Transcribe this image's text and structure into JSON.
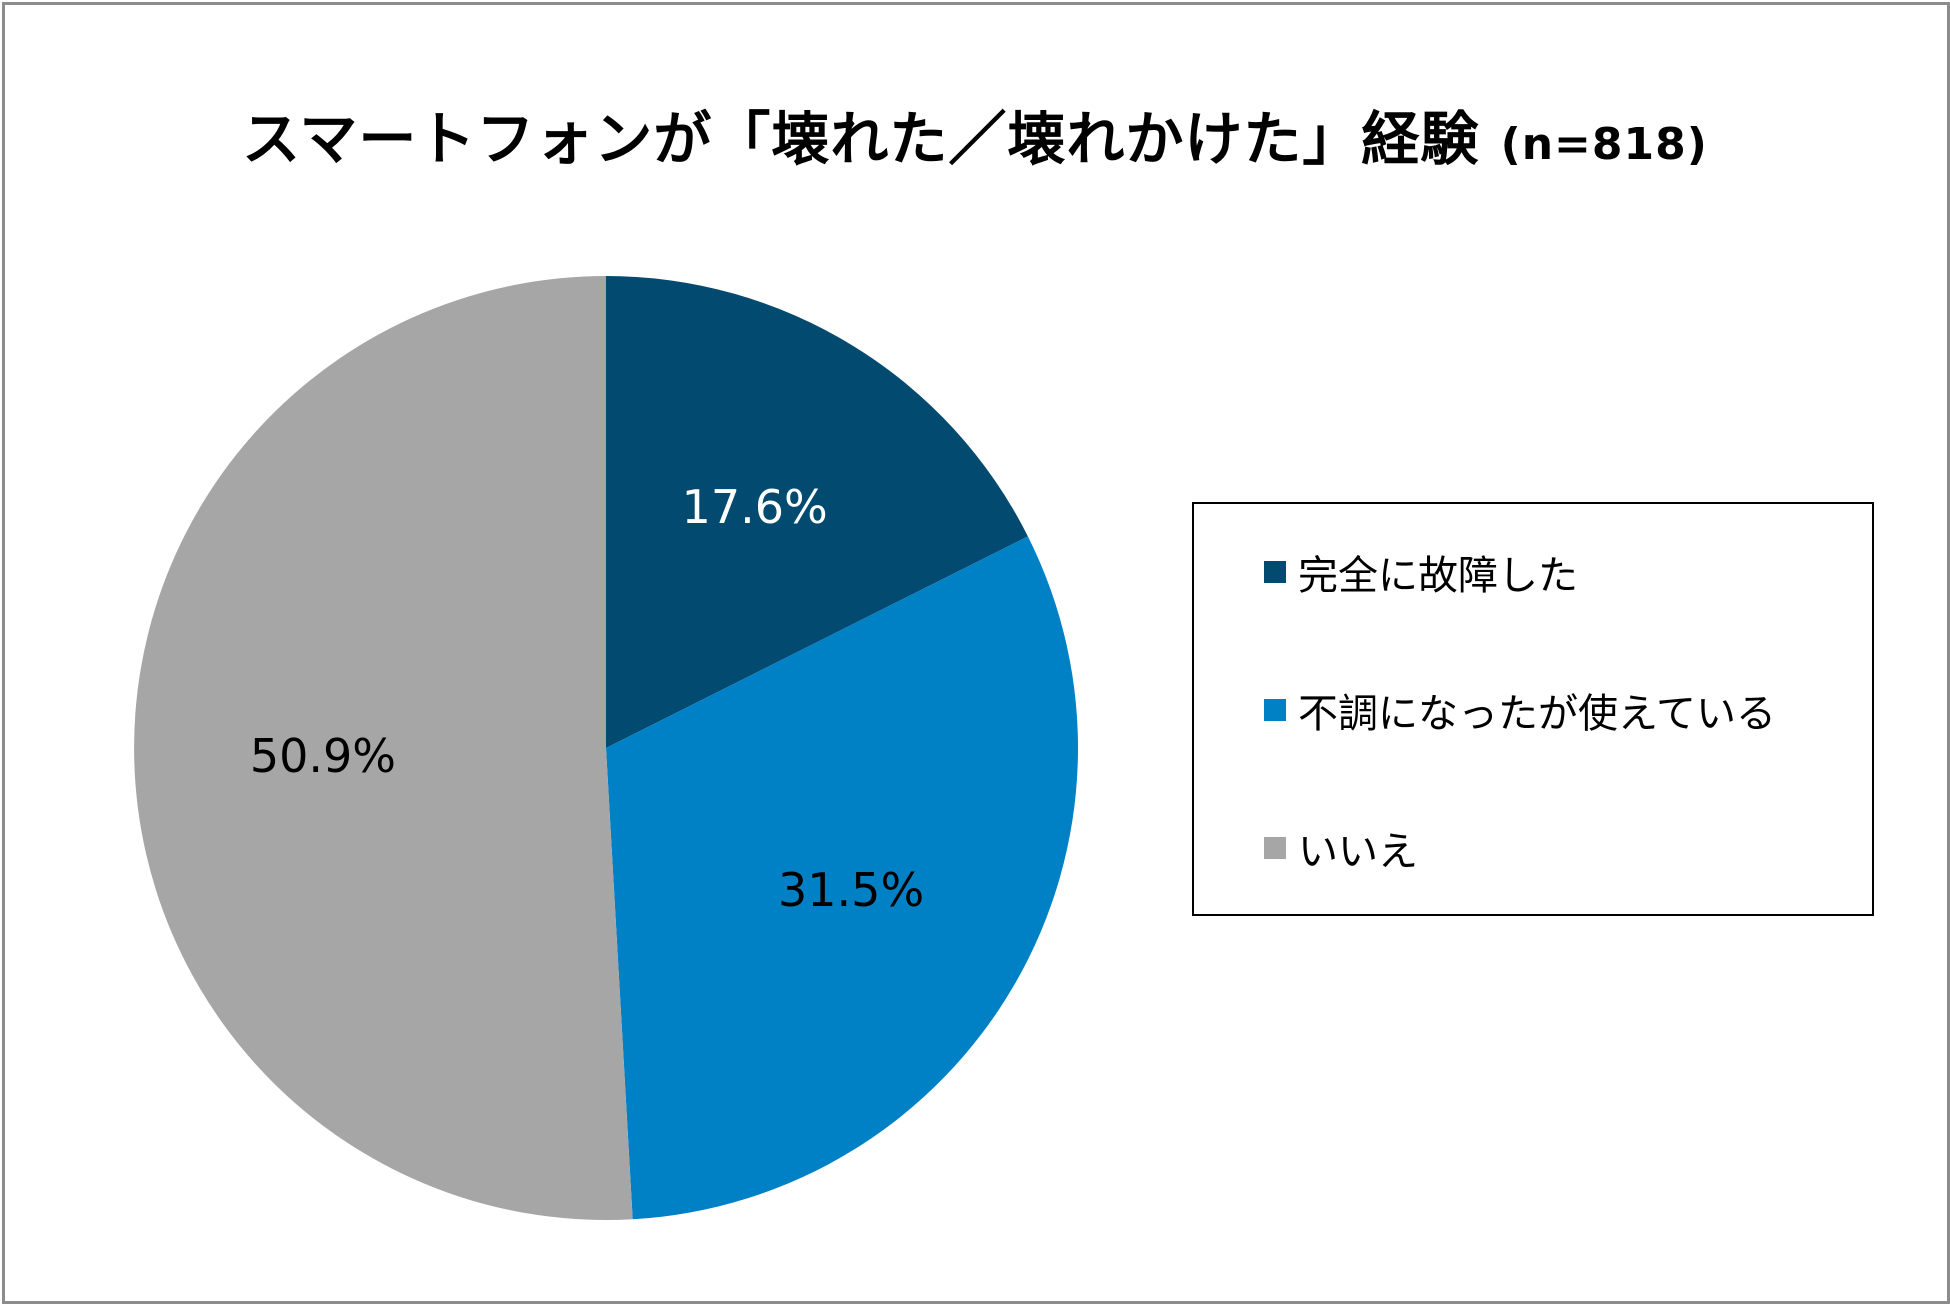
{
  "chart_data": {
    "type": "pie",
    "title": "スマートフォンが「壊れた／壊れかけた」経験",
    "title_note": "(n=818)",
    "categories": [
      "完全に故障した",
      "不調になったが使えている",
      "いいえ"
    ],
    "values": [
      17.6,
      31.5,
      50.9
    ],
    "value_labels": [
      "17.6%",
      "31.5%",
      "50.9%"
    ],
    "colors": [
      "#024a70",
      "#0080c5",
      "#a6a6a6"
    ],
    "label_colors": [
      "#ffffff",
      "#000000",
      "#000000"
    ],
    "start_angle": "12 o'clock",
    "direction": "clockwise",
    "legend_position": "right"
  },
  "frame": {
    "border_color": "#8c8c8c"
  }
}
